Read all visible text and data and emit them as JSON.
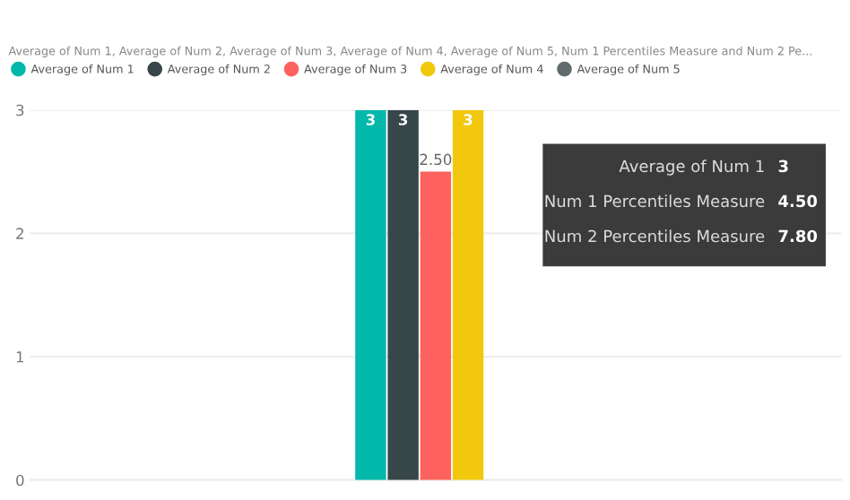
{
  "chart_data": {
    "type": "bar",
    "title": "Average of Num 1, Average of Num 2, Average of Num 3, Average of Num 4, Average of Num 5, Num 1 Percentiles Measure and Num 2 Pe...",
    "categories": [
      null
    ],
    "series": [
      {
        "name": "Average of Num 1",
        "color": "#01b8aa",
        "values": [
          3
        ],
        "value_labels": [
          "3"
        ]
      },
      {
        "name": "Average of Num 2",
        "color": "#374649",
        "values": [
          3
        ],
        "value_labels": [
          "3"
        ]
      },
      {
        "name": "Average of Num 3",
        "color": "#fd625e",
        "values": [
          2.5
        ],
        "value_labels": [
          "2.50"
        ]
      },
      {
        "name": "Average of Num 4",
        "color": "#f2c80f",
        "values": [
          3
        ],
        "value_labels": [
          "3"
        ]
      },
      {
        "name": "Average of Num 5",
        "color": "#5f6b6d",
        "values": [
          null
        ],
        "value_labels": [
          null
        ]
      }
    ],
    "ylim": [
      0,
      3
    ],
    "yticks": [
      0,
      1,
      2,
      3
    ],
    "grid": "y",
    "legend": "top left",
    "annotations": [
      "Average of Num 1",
      "3",
      "Num 1 Percentiles Measure",
      "4.50",
      "Num 2 Percentiles Measure",
      "7.80"
    ]
  }
}
